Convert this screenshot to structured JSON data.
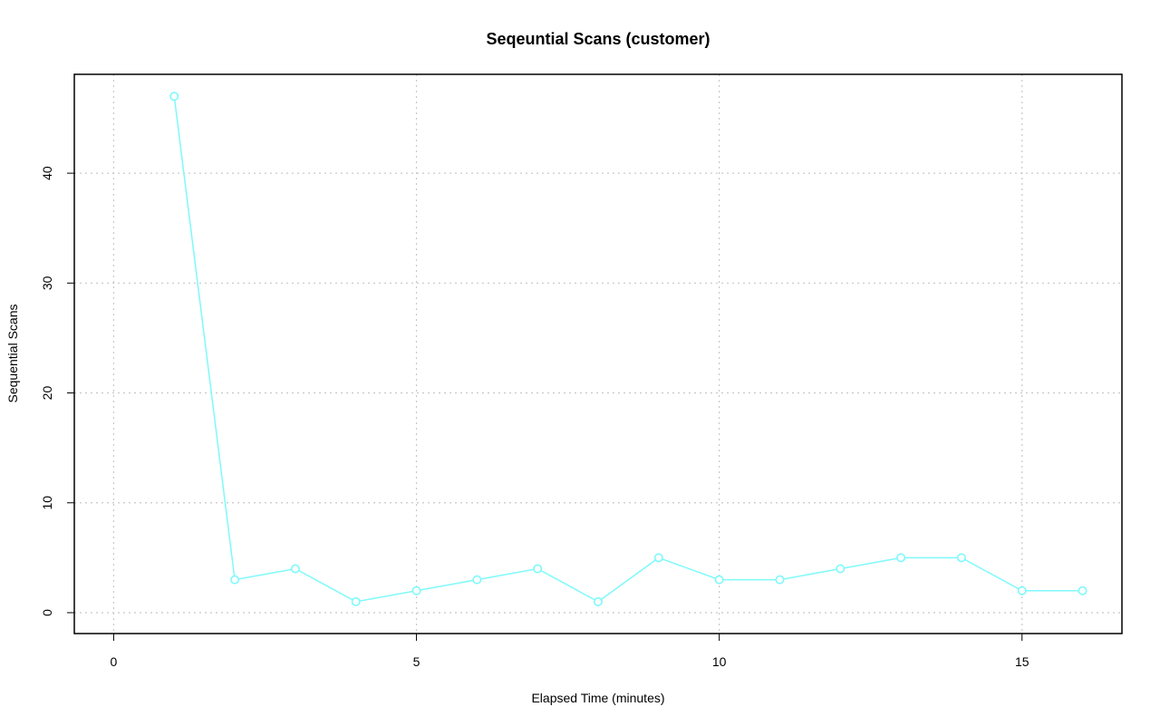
{
  "chart_data": {
    "type": "line",
    "title": "Seqeuntial Scans (customer)",
    "xlabel": "Elapsed Time (minutes)",
    "ylabel": "Sequential Scans",
    "xlim": [
      -0.65,
      16.65
    ],
    "ylim": [
      -1.9,
      49.0
    ],
    "x_ticks": [
      0,
      5,
      10,
      15
    ],
    "y_ticks": [
      0,
      10,
      20,
      30,
      40
    ],
    "grid": true,
    "grid_style": "dotted",
    "legend": "none",
    "series": [
      {
        "color": "#7ff9fb",
        "marker": "open-circle",
        "x": [
          1,
          2,
          3,
          4,
          5,
          6,
          7,
          8,
          9,
          10,
          11,
          12,
          13,
          14,
          15,
          16
        ],
        "y": [
          47,
          3,
          4,
          1,
          2,
          3,
          4,
          1,
          5,
          3,
          3,
          4,
          5,
          5,
          2,
          2
        ]
      }
    ]
  }
}
